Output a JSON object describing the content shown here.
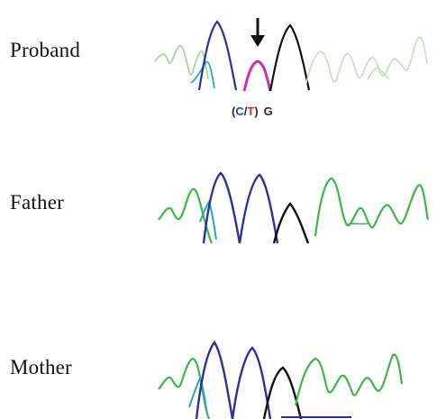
{
  "samples": [
    {
      "id": "proband",
      "label": "Proband"
    },
    {
      "id": "father",
      "label": "Father"
    },
    {
      "id": "mother",
      "label": "Mother"
    }
  ],
  "variant": {
    "paren_open": "(",
    "allele_1": "C",
    "slash": "/",
    "allele_2": "T",
    "paren_close": ")",
    "next_base": "G"
  },
  "colors": {
    "A": "#3fb54a",
    "C": "#2b2fa0",
    "G": "#111111",
    "T": "#d7261e",
    "heterozygous": "#cc2fae",
    "arrow": "#111111"
  }
}
